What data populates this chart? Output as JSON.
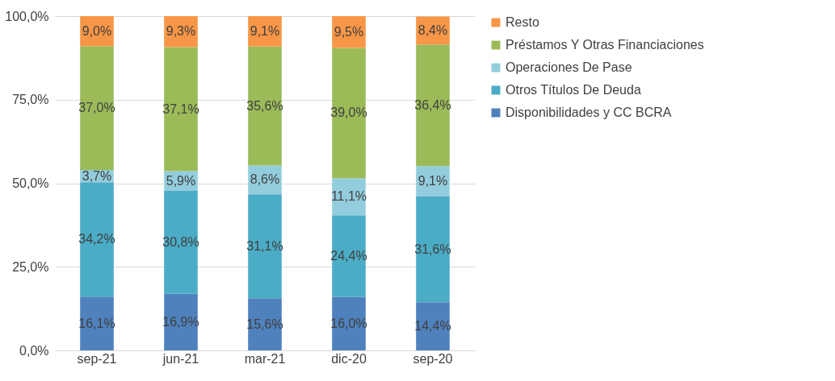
{
  "chart_data": {
    "type": "bar",
    "stacked": true,
    "categories": [
      "sep-21",
      "jun-21",
      "mar-21",
      "dic-20",
      "sep-20"
    ],
    "series": [
      {
        "name": "Disponibilidades y CC BCRA",
        "color": "#4f81bd",
        "values": [
          16.1,
          16.9,
          15.6,
          16.0,
          14.4
        ],
        "value_labels": [
          "16,1%",
          "16,9%",
          "15,6%",
          "16,0%",
          "14,4%"
        ]
      },
      {
        "name": "Otros Títulos De Deuda",
        "color": "#4bacc6",
        "values": [
          34.2,
          30.8,
          31.1,
          24.4,
          31.6
        ],
        "value_labels": [
          "34,2%",
          "30,8%",
          "31,1%",
          "24,4%",
          "31,6%"
        ]
      },
      {
        "name": "Operaciones De Pase",
        "color": "#93cddd",
        "values": [
          3.7,
          5.9,
          8.6,
          11.1,
          9.1
        ],
        "value_labels": [
          "3,7%",
          "5,9%",
          "8,6%",
          "11,1%",
          "9,1%"
        ]
      },
      {
        "name": "Préstamos Y Otras Financiaciones",
        "color": "#9bbb59",
        "values": [
          37.0,
          37.1,
          35.6,
          39.0,
          36.4
        ],
        "value_labels": [
          "37,0%",
          "37,1%",
          "35,6%",
          "39,0%",
          "36,4%"
        ]
      },
      {
        "name": "Resto",
        "color": "#f79646",
        "values": [
          9.0,
          9.3,
          9.1,
          9.5,
          8.4
        ],
        "value_labels": [
          "9,0%",
          "9,3%",
          "9,1%",
          "9,5%",
          "8,4%"
        ]
      }
    ],
    "ylim": [
      0,
      100
    ],
    "yticks": [
      {
        "value": 0,
        "label": "0,0%"
      },
      {
        "value": 25,
        "label": "25,0%"
      },
      {
        "value": 50,
        "label": "50,0%"
      },
      {
        "value": 75,
        "label": "75,0%"
      },
      {
        "value": 100,
        "label": "100,0%"
      }
    ],
    "grid": "y",
    "legend": "right"
  }
}
